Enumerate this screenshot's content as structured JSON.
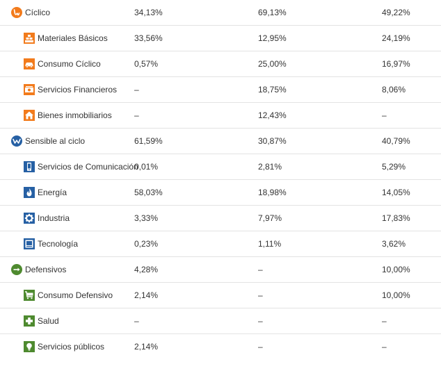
{
  "colors": {
    "ciclico": "#f27b1c",
    "sensible": "#2660a4",
    "defensivo": "#4e8a2f",
    "text": "#333333",
    "divider": "#e3e3e3"
  },
  "rows": [
    {
      "type": "group",
      "label": "Cíclico",
      "icon": "cyclical-icon",
      "values": [
        "34,13%",
        "69,13%",
        "49,22%"
      ]
    },
    {
      "type": "sub",
      "label": "Materiales Básicos",
      "icon": "basic-materials-icon",
      "values": [
        "33,56%",
        "12,95%",
        "24,19%"
      ]
    },
    {
      "type": "sub",
      "label": "Consumo Cíclico",
      "icon": "car-icon",
      "values": [
        "0,57%",
        "25,00%",
        "16,97%"
      ]
    },
    {
      "type": "sub",
      "label": "Servicios Financieros",
      "icon": "financial-icon",
      "values": [
        "–",
        "18,75%",
        "8,06%"
      ]
    },
    {
      "type": "sub",
      "label": "Bienes inmobiliarios",
      "icon": "house-icon",
      "values": [
        "–",
        "12,43%",
        "–"
      ]
    },
    {
      "type": "group",
      "label": "Sensible al ciclo",
      "icon": "sensitive-icon",
      "values": [
        "61,59%",
        "30,87%",
        "40,79%"
      ]
    },
    {
      "type": "sub",
      "label": "Servicios de Comunicación",
      "icon": "phone-icon",
      "values": [
        "0,01%",
        "2,81%",
        "5,29%"
      ]
    },
    {
      "type": "sub",
      "label": "Energía",
      "icon": "flame-icon",
      "values": [
        "58,03%",
        "18,98%",
        "14,05%"
      ]
    },
    {
      "type": "sub",
      "label": "Industria",
      "icon": "gear-icon",
      "values": [
        "3,33%",
        "7,97%",
        "17,83%"
      ]
    },
    {
      "type": "sub",
      "label": "Tecnología",
      "icon": "monitor-icon",
      "values": [
        "0,23%",
        "1,11%",
        "3,62%"
      ]
    },
    {
      "type": "group",
      "label": "Defensivos",
      "icon": "defensive-icon",
      "values": [
        "4,28%",
        "–",
        "10,00%"
      ]
    },
    {
      "type": "sub",
      "label": "Consumo Defensivo",
      "icon": "cart-icon",
      "values": [
        "2,14%",
        "–",
        "10,00%"
      ]
    },
    {
      "type": "sub",
      "label": "Salud",
      "icon": "health-cross-icon",
      "values": [
        "–",
        "–",
        "–"
      ]
    },
    {
      "type": "sub",
      "label": "Servicios públicos",
      "icon": "bulb-icon",
      "values": [
        "2,14%",
        "–",
        "–"
      ]
    }
  ]
}
